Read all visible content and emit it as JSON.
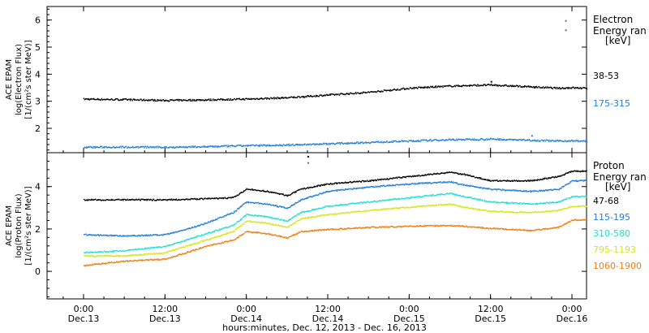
{
  "chart_data": [
    {
      "type": "scatter",
      "ylabel_lines": [
        "ACE EPAM",
        "log(Electron Flux)",
        "[1/(cm²s ster MeV)]"
      ],
      "ylim": [
        1.1,
        6.5
      ],
      "yticks": [
        2,
        3,
        4,
        5,
        6
      ],
      "xlim": [
        0,
        96
      ],
      "legend_title": [
        "Electron",
        "Energy ran",
        "[keV]"
      ],
      "series": [
        {
          "name": "38-53",
          "color": "#000000",
          "points": [
            [
              0,
              3.1
            ],
            [
              6,
              3.08
            ],
            [
              12,
              3.05
            ],
            [
              18,
              3.07
            ],
            [
              24,
              3.1
            ],
            [
              30,
              3.15
            ],
            [
              36,
              3.25
            ],
            [
              42,
              3.35
            ],
            [
              48,
              3.5
            ],
            [
              54,
              3.58
            ],
            [
              60,
              3.62
            ],
            [
              66,
              3.55
            ],
            [
              70,
              3.5
            ],
            [
              72,
              3.52
            ],
            [
              78,
              3.45
            ],
            [
              84,
              3.4
            ],
            [
              88,
              3.3
            ],
            [
              90,
              3.25
            ],
            [
              92,
              3.12
            ],
            [
              95,
              3.06
            ]
          ],
          "outliers": [
            [
              60,
              3.75
            ]
          ]
        },
        {
          "name": "175-315",
          "color": "#1f7ed8",
          "points": [
            [
              0,
              1.32
            ],
            [
              6,
              1.33
            ],
            [
              12,
              1.32
            ],
            [
              18,
              1.34
            ],
            [
              24,
              1.38
            ],
            [
              30,
              1.4
            ],
            [
              36,
              1.45
            ],
            [
              42,
              1.5
            ],
            [
              48,
              1.55
            ],
            [
              54,
              1.6
            ],
            [
              60,
              1.62
            ],
            [
              66,
              1.58
            ],
            [
              70,
              1.55
            ],
            [
              72,
              1.56
            ],
            [
              78,
              1.5
            ],
            [
              84,
              1.45
            ],
            [
              90,
              1.42
            ],
            [
              95,
              1.38
            ]
          ],
          "outliers": [
            [
              71,
              5.65
            ],
            [
              71,
              6.0
            ],
            [
              66,
              1.75
            ]
          ]
        }
      ]
    },
    {
      "type": "scatter",
      "ylabel_lines": [
        "ACE EPAM",
        "log(Proton Flux)",
        "[1/(cm²s ster MeV)]"
      ],
      "ylim": [
        -1.3,
        5.6
      ],
      "yticks": [
        0,
        2,
        4
      ],
      "xlim": [
        0,
        96
      ],
      "legend_title": [
        "Proton",
        "Energy ran",
        "[keV]"
      ],
      "series": [
        {
          "name": "47-68",
          "color": "#000000",
          "points": [
            [
              0,
              3.4
            ],
            [
              12,
              3.4
            ],
            [
              18,
              3.45
            ],
            [
              22,
              3.5
            ],
            [
              24,
              3.9
            ],
            [
              27,
              3.8
            ],
            [
              30,
              3.6
            ],
            [
              32,
              3.9
            ],
            [
              36,
              4.15
            ],
            [
              42,
              4.3
            ],
            [
              48,
              4.5
            ],
            [
              54,
              4.7
            ],
            [
              56,
              4.6
            ],
            [
              60,
              4.3
            ],
            [
              66,
              4.3
            ],
            [
              70,
              4.5
            ],
            [
              72,
              4.75
            ],
            [
              78,
              4.75
            ],
            [
              84,
              4.6
            ],
            [
              88,
              4.45
            ],
            [
              90,
              4.35
            ],
            [
              92,
              3.8
            ],
            [
              95,
              3.75
            ]
          ],
          "outliers": [
            [
              33,
              5.45
            ]
          ]
        },
        {
          "name": "115-195",
          "color": "#1f7ed8",
          "points": [
            [
              0,
              1.75
            ],
            [
              6,
              1.7
            ],
            [
              12,
              1.75
            ],
            [
              15,
              2.0
            ],
            [
              18,
              2.3
            ],
            [
              22,
              2.8
            ],
            [
              24,
              3.3
            ],
            [
              27,
              3.2
            ],
            [
              30,
              3.0
            ],
            [
              32,
              3.4
            ],
            [
              36,
              3.8
            ],
            [
              42,
              4.0
            ],
            [
              48,
              4.15
            ],
            [
              54,
              4.25
            ],
            [
              56,
              4.1
            ],
            [
              60,
              3.9
            ],
            [
              66,
              3.8
            ],
            [
              70,
              3.9
            ],
            [
              72,
              4.3
            ],
            [
              78,
              4.3
            ],
            [
              84,
              4.2
            ],
            [
              88,
              4.05
            ],
            [
              90,
              3.9
            ],
            [
              92,
              2.9
            ],
            [
              95,
              2.8
            ]
          ],
          "outliers": [
            [
              33,
              5.15
            ]
          ]
        },
        {
          "name": "310-580",
          "color": "#22e0d0",
          "points": [
            [
              0,
              0.9
            ],
            [
              6,
              1.0
            ],
            [
              12,
              1.2
            ],
            [
              15,
              1.5
            ],
            [
              18,
              1.8
            ],
            [
              22,
              2.2
            ],
            [
              24,
              2.7
            ],
            [
              27,
              2.6
            ],
            [
              30,
              2.4
            ],
            [
              32,
              2.8
            ],
            [
              36,
              3.1
            ],
            [
              42,
              3.3
            ],
            [
              48,
              3.5
            ],
            [
              54,
              3.7
            ],
            [
              56,
              3.55
            ],
            [
              60,
              3.3
            ],
            [
              66,
              3.2
            ],
            [
              70,
              3.3
            ],
            [
              72,
              3.55
            ],
            [
              78,
              3.55
            ],
            [
              84,
              3.45
            ],
            [
              88,
              3.3
            ],
            [
              90,
              3.05
            ],
            [
              92,
              2.0
            ],
            [
              95,
              1.95
            ]
          ],
          "outliers": []
        },
        {
          "name": "795-1193",
          "color": "#d4e61a",
          "points": [
            [
              0,
              0.75
            ],
            [
              6,
              0.75
            ],
            [
              12,
              0.9
            ],
            [
              15,
              1.2
            ],
            [
              18,
              1.5
            ],
            [
              22,
              1.9
            ],
            [
              24,
              2.4
            ],
            [
              27,
              2.3
            ],
            [
              30,
              2.1
            ],
            [
              32,
              2.5
            ],
            [
              36,
              2.7
            ],
            [
              42,
              2.9
            ],
            [
              48,
              3.05
            ],
            [
              54,
              3.2
            ],
            [
              56,
              3.05
            ],
            [
              60,
              2.85
            ],
            [
              66,
              2.8
            ],
            [
              70,
              2.9
            ],
            [
              72,
              3.1
            ],
            [
              78,
              3.1
            ],
            [
              84,
              3.0
            ],
            [
              88,
              2.85
            ],
            [
              90,
              2.6
            ],
            [
              92,
              1.5
            ],
            [
              95,
              1.45
            ]
          ],
          "outliers": []
        },
        {
          "name": "1060-1900",
          "color": "#f07d12",
          "points": [
            [
              0,
              0.3
            ],
            [
              6,
              0.5
            ],
            [
              12,
              0.6
            ],
            [
              15,
              0.9
            ],
            [
              18,
              1.2
            ],
            [
              22,
              1.5
            ],
            [
              24,
              1.9
            ],
            [
              27,
              1.8
            ],
            [
              30,
              1.6
            ],
            [
              32,
              1.9
            ],
            [
              36,
              2.0
            ],
            [
              42,
              2.1
            ],
            [
              48,
              2.15
            ],
            [
              54,
              2.2
            ],
            [
              56,
              2.15
            ],
            [
              60,
              2.05
            ],
            [
              66,
              1.95
            ],
            [
              70,
              2.1
            ],
            [
              72,
              2.45
            ],
            [
              78,
              2.45
            ],
            [
              84,
              2.3
            ],
            [
              88,
              2.2
            ],
            [
              90,
              1.9
            ],
            [
              92,
              0.7
            ],
            [
              95,
              0.7
            ]
          ],
          "outliers": []
        }
      ]
    }
  ],
  "x_axis": {
    "ticks": [
      {
        "x": 0,
        "time": "0:00",
        "date": "Dec.13"
      },
      {
        "x": 12,
        "time": "12:00",
        "date": "Dec.13"
      },
      {
        "x": 24,
        "time": "0:00",
        "date": "Dec.14"
      },
      {
        "x": 36,
        "time": "12:00",
        "date": "Dec.14"
      },
      {
        "x": 48,
        "time": "0:00",
        "date": "Dec.15"
      },
      {
        "x": 60,
        "time": "12:00",
        "date": "Dec.15"
      },
      {
        "x": 72,
        "time": "0:00",
        "date": "Dec.16"
      }
    ],
    "label": "hours:minutes, Dec. 12, 2013 - Dec. 16, 2013"
  }
}
